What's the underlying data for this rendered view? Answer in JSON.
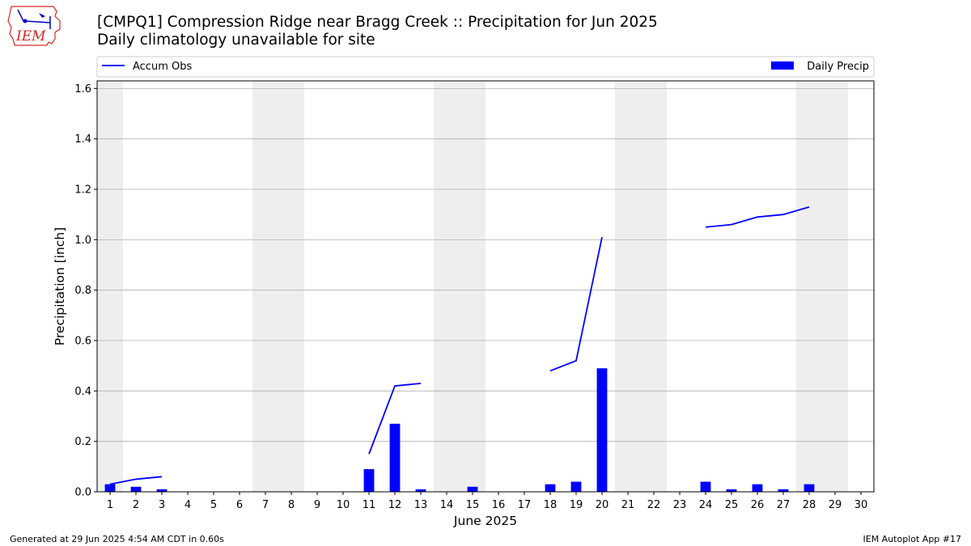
{
  "header": {
    "title_line1": "[CMPQ1] Compression Ridge near Bragg Creek :: Precipitation for Jun 2025",
    "title_line2": "Daily climatology unavailable for site",
    "logo_text": "IEM"
  },
  "footer": {
    "generated": "Generated at 29 Jun 2025 4:54 AM CDT in 0.60s",
    "app": "IEM Autoplot App #17"
  },
  "colors": {
    "series": "#0000ff",
    "weekend_shade": "#eeeeee",
    "grid": "#b0b0b0",
    "logo_red": "#d62728"
  },
  "chart_data": {
    "type": "bar",
    "title": "[CMPQ1] Compression Ridge near Bragg Creek :: Precipitation for Jun 2025",
    "subtitle": "Daily climatology unavailable for site",
    "xlabel": "June 2025",
    "ylabel": "Precipitation [inch]",
    "x": [
      1,
      2,
      3,
      4,
      5,
      6,
      7,
      8,
      9,
      10,
      11,
      12,
      13,
      14,
      15,
      16,
      17,
      18,
      19,
      20,
      21,
      22,
      23,
      24,
      25,
      26,
      27,
      28,
      29,
      30
    ],
    "xlim": [
      0.5,
      30.5
    ],
    "ylim": [
      0,
      1.63
    ],
    "yticks": [
      0.0,
      0.2,
      0.4,
      0.6,
      0.8,
      1.0,
      1.2,
      1.4,
      1.6
    ],
    "ytick_labels": [
      "0.0",
      "0.2",
      "0.4",
      "0.6",
      "0.8",
      "1.0",
      "1.2",
      "1.4",
      "1.6"
    ],
    "grid": "horizontal",
    "legend": [
      {
        "name": "Accum Obs",
        "kind": "line",
        "placement": "top-left"
      },
      {
        "name": "Daily Precip",
        "kind": "bar",
        "placement": "top-right"
      }
    ],
    "weekend_shading": [
      [
        0.5,
        1.5
      ],
      [
        6.5,
        8.5
      ],
      [
        13.5,
        15.5
      ],
      [
        20.5,
        22.5
      ],
      [
        27.5,
        29.5
      ]
    ],
    "series": [
      {
        "name": "Daily Precip",
        "type": "bar",
        "points": [
          {
            "day": 1,
            "value": 0.03
          },
          {
            "day": 2,
            "value": 0.02
          },
          {
            "day": 3,
            "value": 0.01
          },
          {
            "day": 11,
            "value": 0.09
          },
          {
            "day": 12,
            "value": 0.27
          },
          {
            "day": 13,
            "value": 0.01
          },
          {
            "day": 15,
            "value": 0.02
          },
          {
            "day": 18,
            "value": 0.03
          },
          {
            "day": 19,
            "value": 0.04
          },
          {
            "day": 20,
            "value": 0.49
          },
          {
            "day": 24,
            "value": 0.04
          },
          {
            "day": 25,
            "value": 0.01
          },
          {
            "day": 26,
            "value": 0.03
          },
          {
            "day": 27,
            "value": 0.01
          },
          {
            "day": 28,
            "value": 0.03
          }
        ]
      },
      {
        "name": "Accum Obs",
        "type": "line",
        "segments": [
          [
            {
              "day": 1,
              "value": 0.03
            },
            {
              "day": 2,
              "value": 0.05
            },
            {
              "day": 3,
              "value": 0.06
            }
          ],
          [
            {
              "day": 11,
              "value": 0.15
            },
            {
              "day": 12,
              "value": 0.42
            },
            {
              "day": 13,
              "value": 0.43
            }
          ],
          [
            {
              "day": 18,
              "value": 0.48
            },
            {
              "day": 19,
              "value": 0.52
            },
            {
              "day": 20,
              "value": 1.01
            }
          ],
          [
            {
              "day": 24,
              "value": 1.05
            },
            {
              "day": 25,
              "value": 1.06
            },
            {
              "day": 26,
              "value": 1.09
            },
            {
              "day": 27,
              "value": 1.1
            },
            {
              "day": 28,
              "value": 1.13
            }
          ]
        ]
      }
    ]
  }
}
